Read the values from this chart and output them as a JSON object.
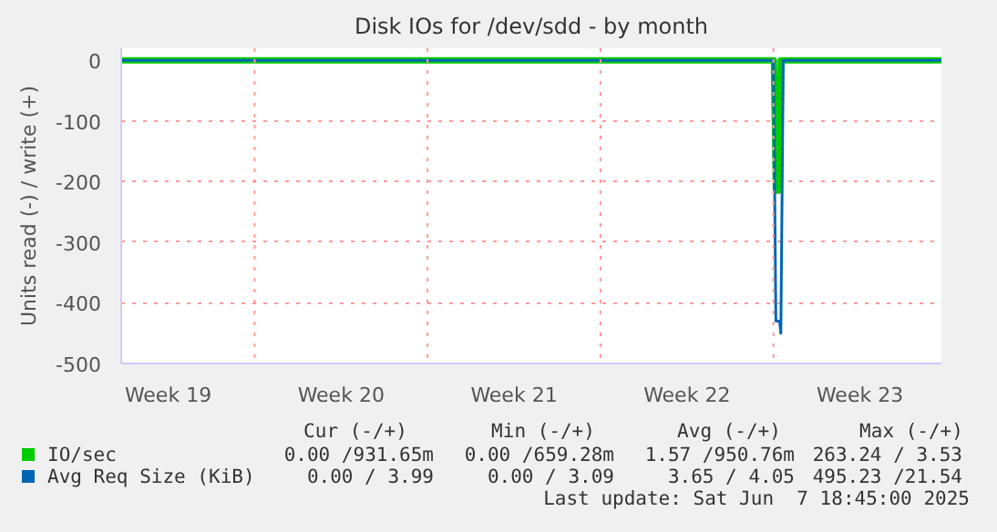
{
  "chart_data": {
    "type": "line",
    "title": "Disk IOs for /dev/sdd - by month",
    "ylabel": "Units read (-) / write (+)",
    "xlim": [
      "2025-05-06T14:24",
      "2025-06-08T19:12"
    ],
    "ylim": [
      -500,
      20
    ],
    "xticks": [
      {
        "value": "2025-05-08T12:00",
        "label": "Week 19"
      },
      {
        "value": "2025-05-15T12:00",
        "label": "Week 20"
      },
      {
        "value": "2025-05-22T12:00",
        "label": "Week 21"
      },
      {
        "value": "2025-05-29T12:00",
        "label": "Week 22"
      },
      {
        "value": "2025-06-05T12:00",
        "label": "Week 23"
      }
    ],
    "yticks": [
      0,
      -100,
      -200,
      -300,
      -400,
      -500
    ],
    "grid": "y",
    "legend": "bottom",
    "ref_lines": [
      {
        "axis": "x",
        "value": "2025-05-12",
        "label": null,
        "color": "#ff9999",
        "line_style": "dotted"
      },
      {
        "axis": "x",
        "value": "2025-05-19",
        "label": null,
        "color": "#ff9999",
        "line_style": "dotted"
      },
      {
        "axis": "x",
        "value": "2025-05-26",
        "label": null,
        "color": "#ff9999",
        "line_style": "dotted"
      },
      {
        "axis": "x",
        "value": "2025-06-02",
        "label": null,
        "color": "#ff9999",
        "line_style": "dotted"
      }
    ],
    "series": [
      {
        "name": "IO/sec",
        "color": "#00cc00",
        "x": [
          "2025-05-06T14:24",
          "2025-06-02T00:30",
          "2025-06-02T02:24",
          "2025-06-02T04:48",
          "2025-06-02T07:12",
          "2025-06-08T19:12"
        ],
        "values": [
          0,
          0,
          -215,
          -215,
          0,
          0
        ]
      },
      {
        "name": "Avg Req Size (KiB)",
        "color": "#0066b3",
        "x": [
          "2025-05-06T14:24",
          "2025-06-02T00:00",
          "2025-06-02T02:24",
          "2025-06-02T06:00",
          "2025-06-02T07:12",
          "2025-06-02T09:36",
          "2025-06-08T19:12"
        ],
        "values": [
          0,
          0,
          -430,
          -430,
          -450,
          0,
          0
        ]
      }
    ],
    "annotations": [
      "Cur (-/+)",
      "Min (-/+)",
      "Avg (-/+)",
      "Max (-/+)",
      "0.00 /931.65m",
      "0.00 /659.28m",
      "1.57 /950.76m",
      "263.24 / 3.53",
      "0.00 / 3.99",
      "0.00 / 3.09",
      "3.65 / 4.05",
      "495.23 /21.54",
      "Last update: Sat Jun  7 18:45:00 2025"
    ]
  }
}
